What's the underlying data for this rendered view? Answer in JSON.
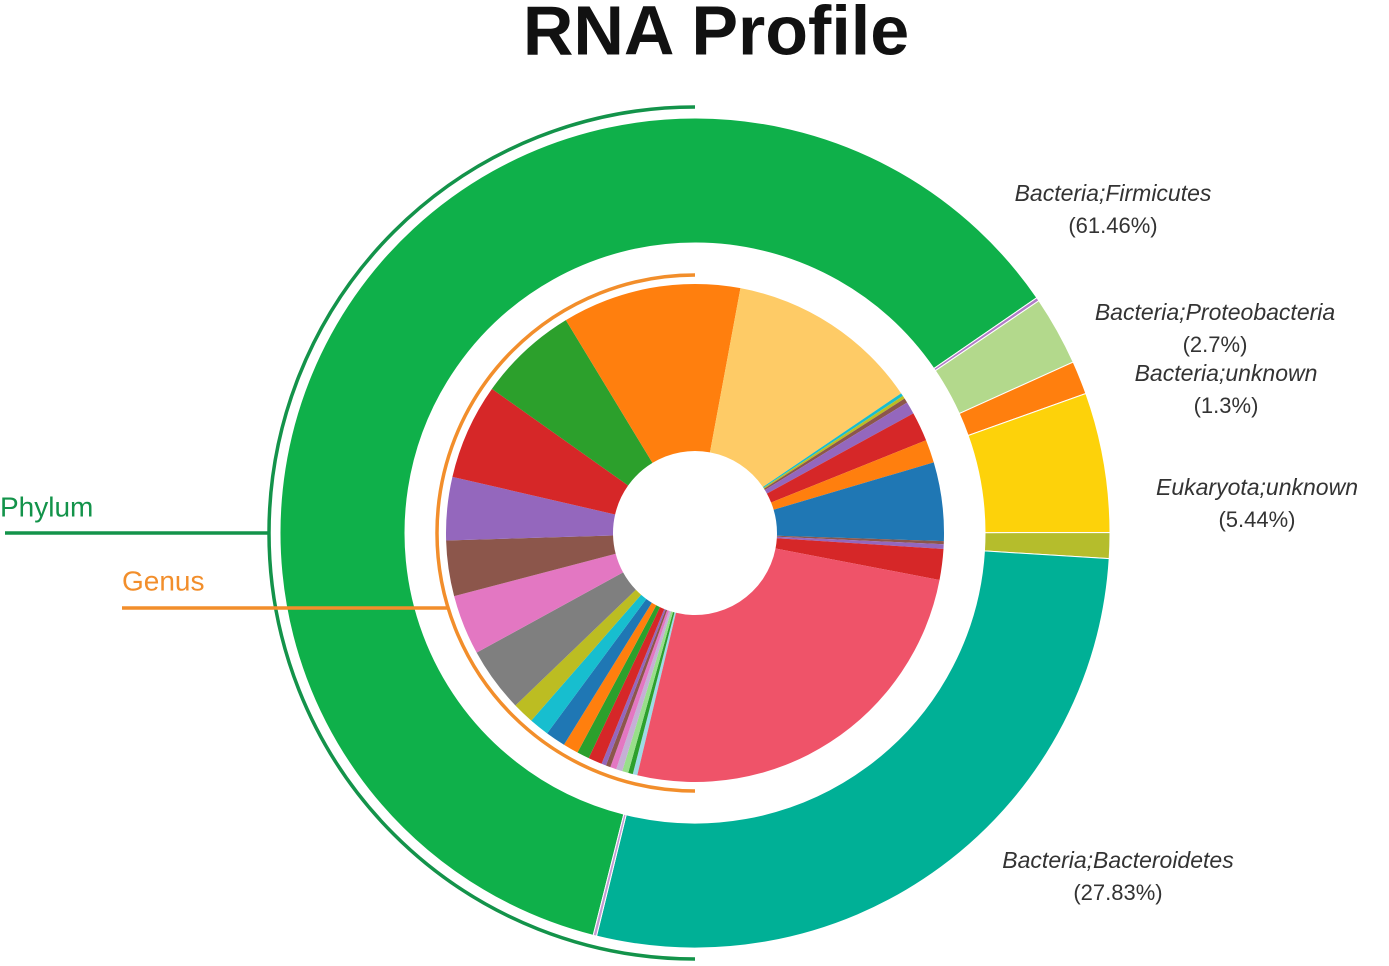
{
  "chart_data": {
    "type": "sunburst",
    "title": "RNA Profile",
    "series": [
      {
        "name": "Phylum",
        "color": "#13934a",
        "categories": [
          "Bacteria;Firmicutes",
          null,
          "Bacteria;Proteobacteria",
          "Bacteria;unknown",
          "Eukaryota;unknown",
          null,
          "Bacteria;Bacteroidetes",
          null
        ],
        "values": [
          61.46,
          0.14,
          2.7,
          1.3,
          5.44,
          1.0,
          27.83,
          0.13
        ],
        "value_labels": [
          "(61.46%)",
          null,
          "(2.7%)",
          "(1.3%)",
          "(5.44%)",
          null,
          "(27.83%)",
          null
        ],
        "colors": [
          "#0fb04a",
          "#b07cc6",
          "#b3d98c",
          "#ff7f0e",
          "#fdd20a",
          "#b5bd2c",
          "#00b096",
          "#c39bd3"
        ]
      },
      {
        "name": "Genus",
        "color": "#f28e2b",
        "categories": [
          null,
          null,
          null,
          null,
          null,
          null,
          null,
          null,
          null,
          null,
          null,
          null,
          null,
          null,
          null,
          null,
          null,
          null,
          null,
          null,
          null,
          null,
          null,
          null,
          null,
          null,
          null,
          null,
          null,
          null,
          null,
          null
        ],
        "values": [
          0.3,
          0.3,
          0.4,
          0.4,
          0.4,
          0.3,
          0.3,
          0.9,
          0.8,
          1.0,
          1.3,
          1.3,
          1.4,
          4.2,
          3.9,
          3.6,
          4.1,
          6.2,
          6.5,
          11.6,
          12.6,
          0.2,
          0.2,
          0.3,
          0.8,
          1.9,
          1.5,
          5.1,
          0.2,
          0.3,
          2.0,
          25.7
        ],
        "colors": [
          "#9edae5",
          "#2ca02c",
          "#98df8a",
          "#c5b0d5",
          "#e377c2",
          "#8c564b",
          "#9467bd",
          "#d62728",
          "#2ca02c",
          "#ff7f0e",
          "#1f77b4",
          "#17becf",
          "#bcbd22",
          "#7f7f7f",
          "#e377c2",
          "#8c564b",
          "#9467bd",
          "#d62728",
          "#2ca02c",
          "#ff7f0e",
          "#fecb66",
          "#17becf",
          "#bcbd22",
          "#8c564b",
          "#9467bd",
          "#d62728",
          "#ff7f0e",
          "#1f77b4",
          "#8c564b",
          "#9467bd",
          "#d62728",
          "#ef5369"
        ]
      }
    ]
  }
}
